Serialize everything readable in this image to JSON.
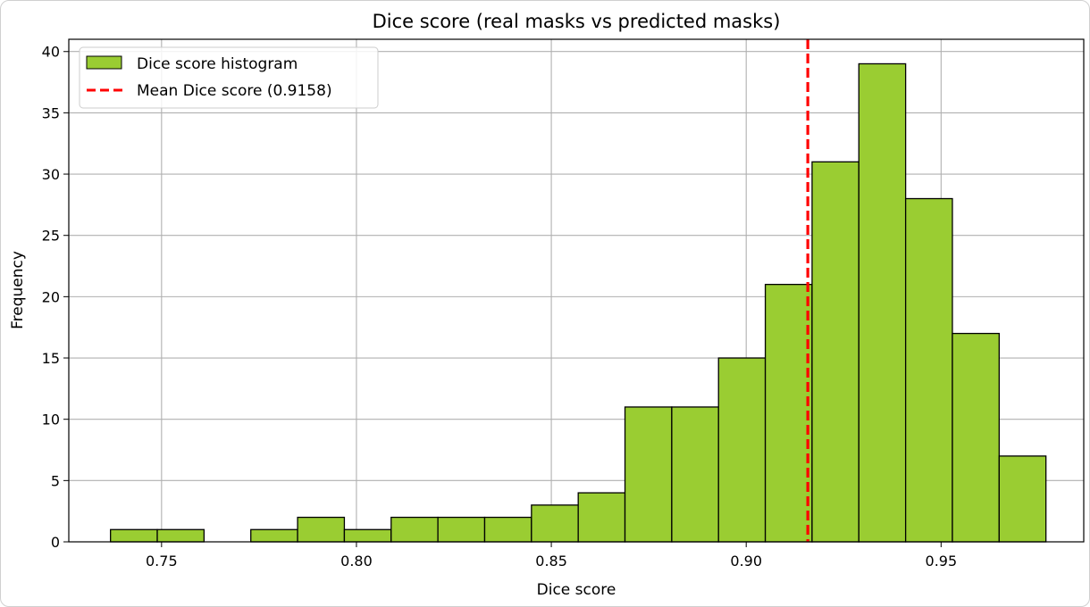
{
  "chart_data": {
    "type": "bar",
    "title": "Dice score (real masks vs predicted masks)",
    "xlabel": "Dice score",
    "ylabel": "Frequency",
    "xlim": [
      0.7262,
      0.9866
    ],
    "ylim": [
      0,
      41
    ],
    "xticks": [
      0.75,
      0.8,
      0.85,
      0.9,
      0.95
    ],
    "xtick_labels": [
      "0.75",
      "0.80",
      "0.85",
      "0.90",
      "0.95"
    ],
    "yticks": [
      0,
      5,
      10,
      15,
      20,
      25,
      30,
      35,
      40
    ],
    "ytick_labels": [
      "0",
      "5",
      "10",
      "15",
      "20",
      "25",
      "30",
      "35",
      "40"
    ],
    "grid": true,
    "legend_position": "top-left",
    "bin_edges": [
      0.7369,
      0.7489,
      0.7609,
      0.7729,
      0.7849,
      0.7969,
      0.8089,
      0.8209,
      0.8329,
      0.8449,
      0.8569,
      0.8689,
      0.8809,
      0.8929,
      0.9049,
      0.9169,
      0.9289,
      0.9409,
      0.9529,
      0.9649,
      0.9769
    ],
    "bin_edge_precision": 4,
    "counts": [
      1,
      1,
      0,
      1,
      2,
      1,
      2,
      2,
      2,
      3,
      4,
      11,
      11,
      15,
      21,
      31,
      39,
      28,
      17,
      7
    ],
    "series": [
      {
        "name": "Dice score histogram",
        "color": "#9acd32",
        "edgecolor": "#000000"
      }
    ],
    "mean_line": {
      "label": "Mean Dice score (0.9158)",
      "value": 0.9158,
      "color": "#ff0000",
      "style": "dashed"
    }
  }
}
